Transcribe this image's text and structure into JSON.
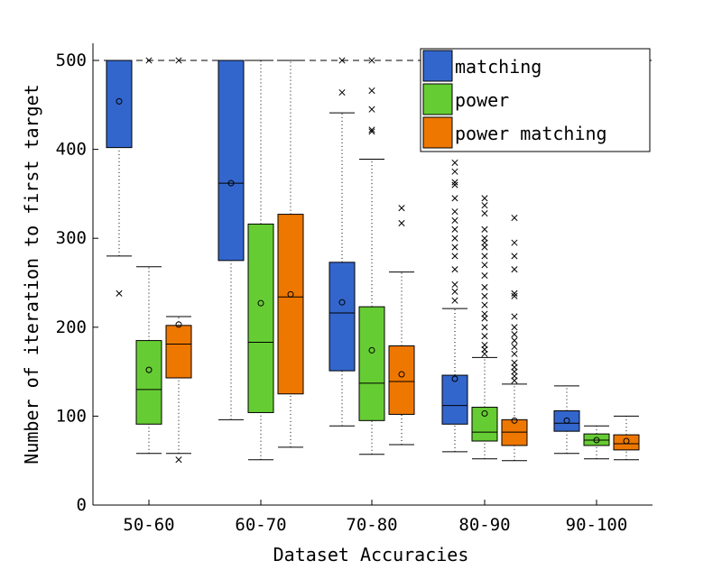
{
  "chart_data": {
    "type": "boxplot",
    "xlabel": "Dataset Accuracies",
    "ylabel": "Number of iteration to first target",
    "ylim": [
      0,
      520
    ],
    "yticks": [
      0,
      100,
      200,
      300,
      400,
      500
    ],
    "categories": [
      "50-60",
      "60-70",
      "70-80",
      "80-90",
      "90-100"
    ],
    "reference_line": 500,
    "legend_position": "top-right",
    "series": [
      {
        "name": "matching",
        "color": "#3366cc",
        "boxes": [
          {
            "whisker_low": 280,
            "q1": 402,
            "median": 500,
            "q3": 500,
            "whisker_high": 500,
            "mean": 454,
            "outliers": [
              238
            ]
          },
          {
            "whisker_low": 96,
            "q1": 275,
            "median": 362,
            "q3": 500,
            "whisker_high": 500,
            "mean": 362,
            "outliers": []
          },
          {
            "whisker_low": 89,
            "q1": 151,
            "median": 216,
            "q3": 273,
            "whisker_high": 441,
            "mean": 228,
            "outliers": [
              464,
              500
            ]
          },
          {
            "whisker_low": 60,
            "q1": 91,
            "median": 112,
            "q3": 146,
            "whisker_high": 221,
            "mean": 142,
            "outliers": [
              230,
              240,
              248,
              265,
              280,
              290,
              300,
              310,
              320,
              330,
              345,
              360,
              363,
              375,
              385
            ]
          },
          {
            "whisker_low": 58,
            "q1": 83,
            "median": 92,
            "q3": 106,
            "whisker_high": 134,
            "mean": 95,
            "outliers": []
          }
        ]
      },
      {
        "name": "power",
        "color": "#66cc33",
        "boxes": [
          {
            "whisker_low": 58,
            "q1": 91,
            "median": 130,
            "q3": 185,
            "whisker_high": 268,
            "mean": 152,
            "outliers": [
              500
            ]
          },
          {
            "whisker_low": 51,
            "q1": 104,
            "median": 183,
            "q3": 316,
            "whisker_high": 500,
            "mean": 227,
            "outliers": []
          },
          {
            "whisker_low": 57,
            "q1": 95,
            "median": 137,
            "q3": 223,
            "whisker_high": 389,
            "mean": 174,
            "outliers": [
              420,
              422,
              445,
              466,
              500
            ]
          },
          {
            "whisker_low": 52,
            "q1": 72,
            "median": 82,
            "q3": 110,
            "whisker_high": 166,
            "mean": 103,
            "outliers": [
              170,
              175,
              180,
              190,
              200,
              210,
              215,
              225,
              235,
              245,
              258,
              270,
              280,
              290,
              295,
              300,
              310,
              328,
              337,
              345
            ]
          },
          {
            "whisker_low": 52,
            "q1": 67,
            "median": 73,
            "q3": 80,
            "whisker_high": 89,
            "mean": 73,
            "outliers": []
          }
        ]
      },
      {
        "name": "power matching",
        "color": "#ee7700",
        "boxes": [
          {
            "whisker_low": 58,
            "q1": 143,
            "median": 181,
            "q3": 202,
            "whisker_high": 212,
            "mean": 203,
            "outliers": [
              51,
              500
            ]
          },
          {
            "whisker_low": 65,
            "q1": 125,
            "median": 234,
            "q3": 327,
            "whisker_high": 500,
            "mean": 237,
            "outliers": []
          },
          {
            "whisker_low": 68,
            "q1": 102,
            "median": 139,
            "q3": 179,
            "whisker_high": 262,
            "mean": 147,
            "outliers": [
              317,
              334
            ]
          },
          {
            "whisker_low": 50,
            "q1": 67,
            "median": 82,
            "q3": 96,
            "whisker_high": 136,
            "mean": 95,
            "outliers": [
              140,
              145,
              150,
              155,
              160,
              170,
              178,
              185,
              192,
              200,
              212,
              235,
              238,
              265,
              280,
              295,
              323
            ]
          },
          {
            "whisker_low": 51,
            "q1": 62,
            "median": 69,
            "q3": 79,
            "whisker_high": 100,
            "mean": 72,
            "outliers": []
          }
        ]
      }
    ]
  }
}
